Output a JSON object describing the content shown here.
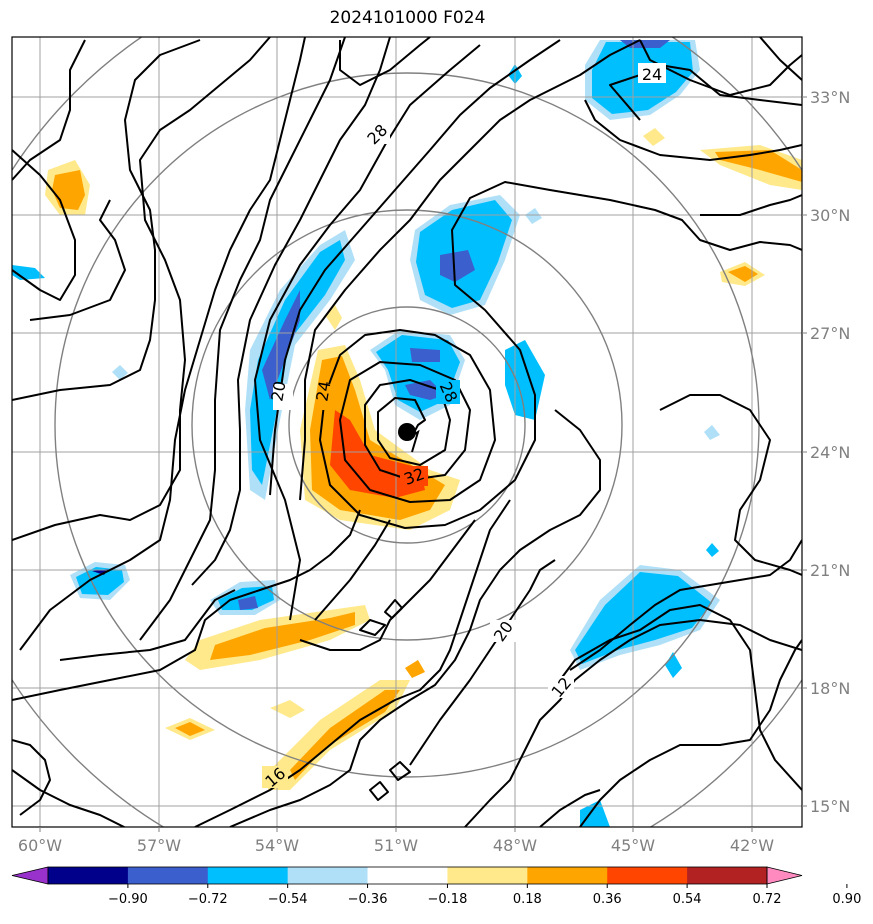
{
  "title": "2024101000 F024",
  "lat_labels": [
    "33°N",
    "30°N",
    "27°N",
    "24°N",
    "21°N",
    "18°N",
    "15°N"
  ],
  "lon_labels": [
    "60°W",
    "57°W",
    "54°W",
    "51°W",
    "48°W",
    "45°W",
    "42°W"
  ],
  "contour_labels": [
    "28",
    "24",
    "24",
    "20",
    "28",
    "32",
    "20",
    "12",
    "16"
  ],
  "colorbar": {
    "tick_labels": [
      "−0.90",
      "−0.72",
      "−0.54",
      "−0.36",
      "−0.18",
      "0.18",
      "0.36",
      "0.54",
      "0.72",
      "0.90"
    ],
    "colors": [
      "#9932cc",
      "#00008b",
      "#3b5fcd",
      "#00bfff",
      "#b0e0f8",
      "#ffffff",
      "#ffe98a",
      "#ffa500",
      "#ff4500",
      "#b22222",
      "#ff8ac0"
    ]
  },
  "storm_center_marker": "black-dot",
  "colors": {
    "positive_shading": "#ffa500",
    "negative_shading": "#00bfff",
    "contour": "#000000",
    "grid": "#a0a0a0",
    "range_rings": "#808080"
  }
}
